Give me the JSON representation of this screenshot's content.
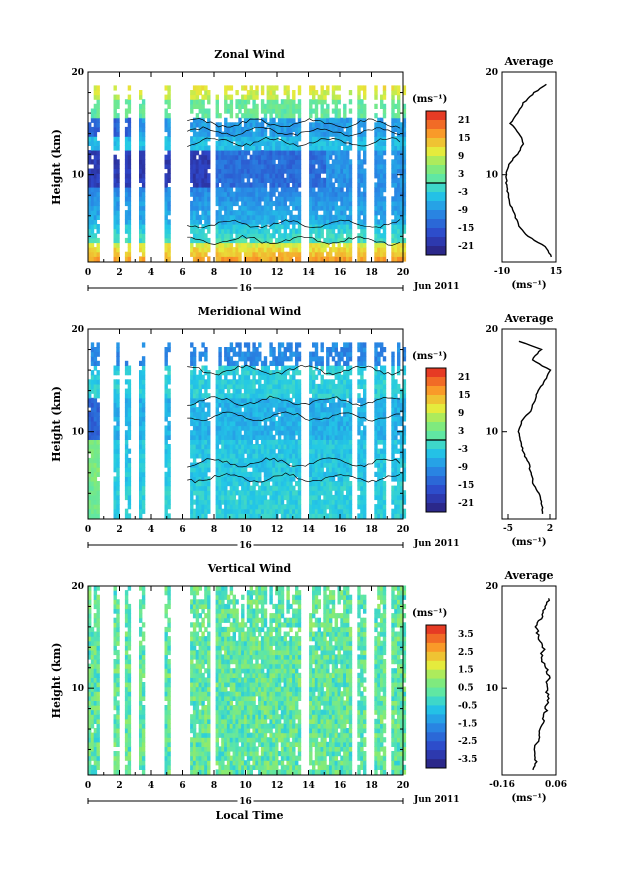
{
  "chart_data": [
    {
      "type": "heatmap",
      "title": "Zonal Wind",
      "ylabel": "Height (km)",
      "xlabel": "",
      "x_ticks": [
        "0",
        "2",
        "4",
        "6",
        "8",
        "10",
        "12",
        "14",
        "16",
        "18",
        "20"
      ],
      "y_ticks": [
        "10",
        "20"
      ],
      "xlim": [
        0,
        20
      ],
      "ylim": [
        1.5,
        20
      ],
      "date_day": "16",
      "date_label": "Jun 2011",
      "colorbar": {
        "unit": "(ms⁻¹)",
        "ticks": [
          "21",
          "15",
          "9",
          "3",
          "-3",
          "-9",
          "-15",
          "-21"
        ],
        "range": [
          -24,
          24
        ]
      },
      "gaps_hours": [
        [
          0.75,
          1.6
        ],
        [
          2.0,
          2.3
        ],
        [
          2.7,
          3.2
        ],
        [
          3.6,
          4.8
        ],
        [
          5.3,
          6.4
        ],
        [
          7.7,
          8.1
        ],
        [
          13.5,
          14.0
        ],
        [
          16.7,
          17.1
        ],
        [
          17.6,
          18.1
        ],
        [
          18.9,
          19.3
        ]
      ],
      "profile": {
        "title": "Average",
        "x_ticks": [
          "-10",
          "15"
        ],
        "y_ticks": [
          "10",
          "20"
        ],
        "xlim": [
          -10,
          15
        ],
        "xlabel": "(ms⁻¹)",
        "heights": [
          2,
          3,
          4,
          5,
          6,
          7,
          8,
          9,
          10,
          11,
          12,
          13,
          14,
          15,
          16,
          17,
          18,
          19
        ],
        "values": [
          13,
          10,
          2,
          -2,
          -4,
          -6,
          -7,
          -8,
          -8,
          -7,
          -3,
          0,
          -2,
          -6,
          -3,
          0,
          5,
          12
        ]
      }
    },
    {
      "type": "heatmap",
      "title": "Meridional Wind",
      "ylabel": "Height (km)",
      "xlabel": "",
      "x_ticks": [
        "0",
        "2",
        "4",
        "6",
        "8",
        "10",
        "12",
        "14",
        "16",
        "18",
        "20"
      ],
      "y_ticks": [
        "10",
        "20"
      ],
      "xlim": [
        0,
        20
      ],
      "ylim": [
        1.5,
        20
      ],
      "date_day": "16",
      "date_label": "Jun 2011",
      "colorbar": {
        "unit": "(ms⁻¹)",
        "ticks": [
          "21",
          "15",
          "9",
          "3",
          "-3",
          "-9",
          "-15",
          "-21"
        ],
        "range": [
          -24,
          24
        ]
      },
      "gaps_hours": [
        [
          0.75,
          1.6
        ],
        [
          2.0,
          2.3
        ],
        [
          2.7,
          3.2
        ],
        [
          3.6,
          4.8
        ],
        [
          5.3,
          6.4
        ],
        [
          7.7,
          8.1
        ],
        [
          13.5,
          14.0
        ],
        [
          16.7,
          17.1
        ],
        [
          17.6,
          18.1
        ],
        [
          18.9,
          19.3
        ]
      ],
      "profile": {
        "title": "Average",
        "x_ticks": [
          "-5",
          "2"
        ],
        "y_ticks": [
          "10",
          "20"
        ],
        "xlim": [
          -6,
          3
        ],
        "xlabel": "(ms⁻¹)",
        "heights": [
          2,
          3,
          4,
          5,
          6,
          7,
          8,
          9,
          10,
          11,
          12,
          13,
          14,
          15,
          16,
          17,
          18,
          19
        ],
        "values": [
          0.8,
          0.6,
          0.2,
          -0.8,
          -1.2,
          -1.6,
          -2.5,
          -2.8,
          -3.2,
          -2.8,
          -1.2,
          -0.6,
          0.0,
          1.2,
          2.0,
          -1.0,
          0.5,
          -4.0
        ]
      }
    },
    {
      "type": "heatmap",
      "title": "Vertical Wind",
      "ylabel": "Height (km)",
      "xlabel": "Local Time",
      "x_ticks": [
        "0",
        "2",
        "4",
        "6",
        "8",
        "10",
        "12",
        "14",
        "16",
        "18",
        "20"
      ],
      "y_ticks": [
        "10",
        "20"
      ],
      "xlim": [
        0,
        20
      ],
      "ylim": [
        1.5,
        20
      ],
      "date_day": "16",
      "date_label": "Jun 2011",
      "colorbar": {
        "unit": "(ms⁻¹)",
        "ticks": [
          "3.5",
          "2.5",
          "1.5",
          "0.5",
          "-0.5",
          "-1.5",
          "-2.5",
          "-3.5"
        ],
        "range": [
          -4,
          4
        ]
      },
      "gaps_hours": [
        [
          0.75,
          1.6
        ],
        [
          2.0,
          2.3
        ],
        [
          2.7,
          3.2
        ],
        [
          3.6,
          4.8
        ],
        [
          5.3,
          6.4
        ],
        [
          7.7,
          8.1
        ],
        [
          13.5,
          14.0
        ],
        [
          16.7,
          17.1
        ],
        [
          17.6,
          18.1
        ],
        [
          18.9,
          19.3
        ]
      ],
      "profile": {
        "title": "Average",
        "x_ticks": [
          "-0.16",
          "0.06"
        ],
        "y_ticks": [
          "10",
          "20"
        ],
        "xlim": [
          -0.16,
          0.06
        ],
        "xlabel": "(ms⁻¹)",
        "heights": [
          2,
          3,
          4,
          5,
          6,
          7,
          8,
          9,
          10,
          11,
          12,
          13,
          14,
          15,
          16,
          17,
          18,
          19
        ],
        "values": [
          -0.03,
          -0.02,
          -0.03,
          -0.01,
          0.0,
          0.01,
          0.02,
          0.03,
          0.02,
          0.03,
          0.02,
          0.0,
          0.01,
          -0.01,
          -0.02,
          0.0,
          0.02,
          0.03
        ]
      }
    }
  ]
}
